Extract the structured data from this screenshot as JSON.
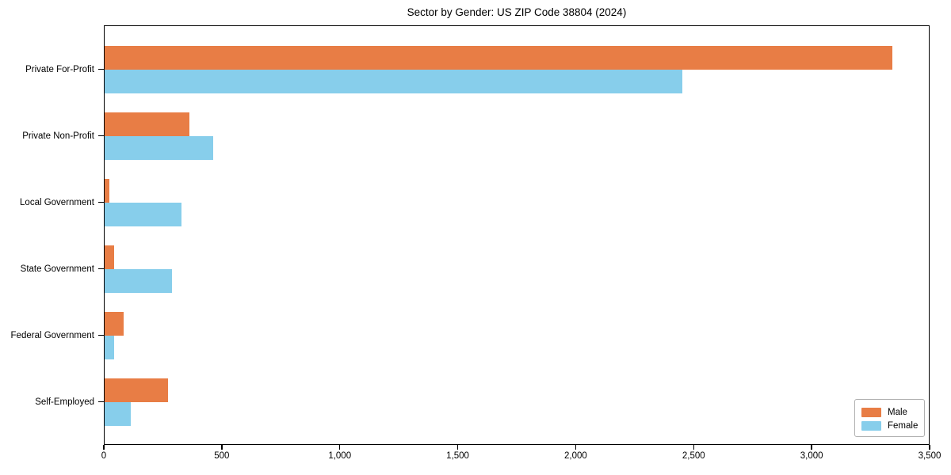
{
  "chart_data": {
    "type": "bar",
    "orientation": "horizontal",
    "title": "Sector by Gender: US ZIP Code 38804 (2024)",
    "categories": [
      "Private For-Profit",
      "Private Non-Profit",
      "Local Government",
      "State Government",
      "Federal Government",
      "Self-Employed"
    ],
    "series": [
      {
        "name": "Male",
        "color": "#e87d45",
        "values": [
          3340,
          360,
          19,
          41,
          81,
          270
        ]
      },
      {
        "name": "Female",
        "color": "#87ceeb",
        "values": [
          2450,
          460,
          325,
          285,
          41,
          110
        ]
      }
    ],
    "xlabel": "",
    "ylabel": "",
    "xlim": [
      0,
      3500
    ],
    "xticks": [
      0,
      500,
      1000,
      1500,
      2000,
      2500,
      3000,
      3500
    ],
    "xtick_labels": [
      "0",
      "500",
      "1,000",
      "1,500",
      "2,000",
      "2,500",
      "3,000",
      "3,500"
    ],
    "grid": false,
    "legend_position": "lower right",
    "frame_color": "#000000",
    "background_color": "#ffffff"
  }
}
